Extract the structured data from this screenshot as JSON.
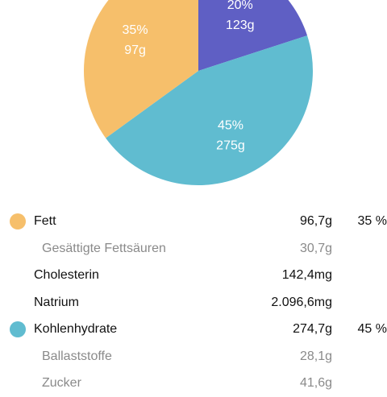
{
  "chart_data": {
    "type": "pie",
    "slices": [
      {
        "percent_label": "20%",
        "amount_label": "123g",
        "value": 20,
        "color": "#5f5fc4"
      },
      {
        "percent_label": "45%",
        "amount_label": "275g",
        "value": 45,
        "color": "#60bcd0"
      },
      {
        "percent_label": "35%",
        "amount_label": "97g",
        "value": 35,
        "color": "#f6bf6b"
      }
    ]
  },
  "nutrients": [
    {
      "label": "Fett",
      "value": "96,7g",
      "percent": "35 %",
      "color": "#f6bf6b"
    },
    {
      "label": "Gesättigte Fettsäuren",
      "value": "30,7g"
    },
    {
      "label": "Cholesterin",
      "value": "142,4mg"
    },
    {
      "label": "Natrium",
      "value": "2.096,6mg"
    },
    {
      "label": "Kohlenhydrate",
      "value": "274,7g",
      "percent": "45 %",
      "color": "#60bcd0"
    },
    {
      "label": "Ballaststoffe",
      "value": "28,1g"
    },
    {
      "label": "Zucker",
      "value": "41,6g"
    }
  ]
}
